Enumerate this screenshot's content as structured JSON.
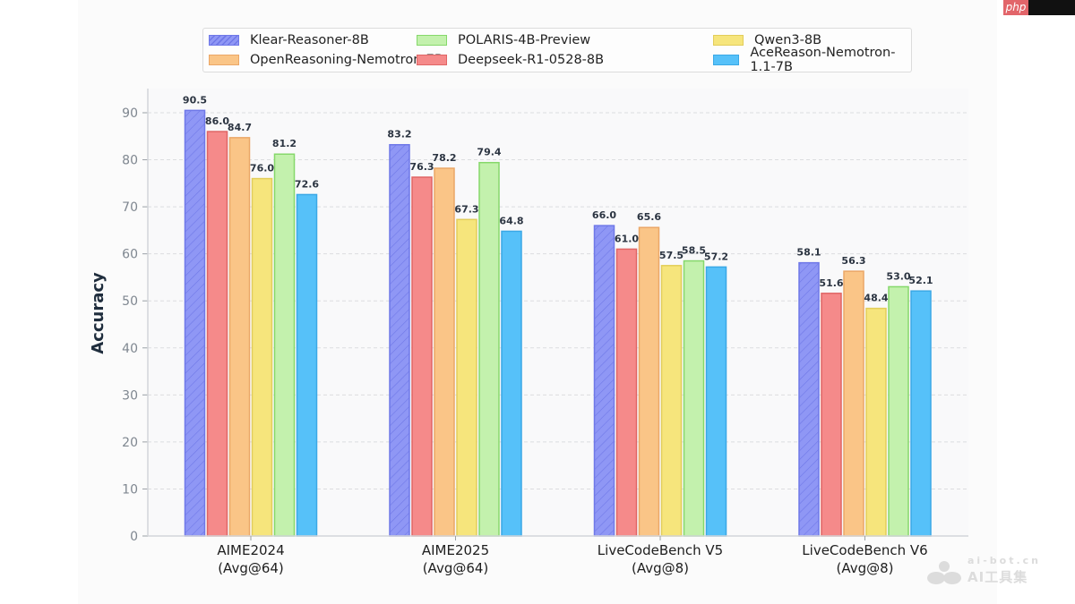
{
  "badge": {
    "label": "php"
  },
  "watermark": {
    "line1": "ai-bot.cn",
    "line2": "AI工具集"
  },
  "chart_data": {
    "type": "bar",
    "title": "",
    "xlabel": "",
    "ylabel": "Accuracy",
    "ylim": [
      0,
      95
    ],
    "yticks": [
      0,
      10,
      20,
      30,
      40,
      50,
      60,
      70,
      80,
      90
    ],
    "grid": "y-dashed",
    "legend_position": "top-center",
    "categories": [
      [
        "AIME2024",
        "(Avg@64)"
      ],
      [
        "AIME2025",
        "(Avg@64)"
      ],
      [
        "LiveCodeBench V5",
        "(Avg@8)"
      ],
      [
        "LiveCodeBench V6",
        "(Avg@8)"
      ]
    ],
    "series": [
      {
        "name": "Klear-Reasoner-8B",
        "color": "#8f97f5",
        "edge": "#6f78e8",
        "hatch": true,
        "values": [
          90.5,
          83.2,
          66.0,
          58.1
        ]
      },
      {
        "name": "Deepseek-R1-0528-8B",
        "color": "#f58a8a",
        "edge": "#e06565",
        "hatch": false,
        "values": [
          86.0,
          76.3,
          61.0,
          51.6
        ]
      },
      {
        "name": "OpenReasoning-Nemotron-7B",
        "color": "#fac587",
        "edge": "#eba767",
        "hatch": false,
        "values": [
          84.7,
          78.2,
          65.6,
          56.3
        ]
      },
      {
        "name": "Qwen3-8B",
        "color": "#f6e57c",
        "edge": "#e2cd5a",
        "hatch": false,
        "values": [
          76.0,
          67.3,
          57.5,
          48.4
        ]
      },
      {
        "name": "POLARIS-4B-Preview",
        "color": "#c3f1ad",
        "edge": "#86d86b",
        "hatch": false,
        "values": [
          81.2,
          79.4,
          58.5,
          53.0
        ]
      },
      {
        "name": "AceReason-Nemotron-1.1-7B",
        "color": "#56c1f9",
        "edge": "#3aa8e6",
        "hatch": false,
        "values": [
          72.6,
          64.8,
          57.2,
          52.1
        ]
      }
    ],
    "legend_order": [
      0,
      2,
      4,
      1,
      3,
      5
    ]
  }
}
